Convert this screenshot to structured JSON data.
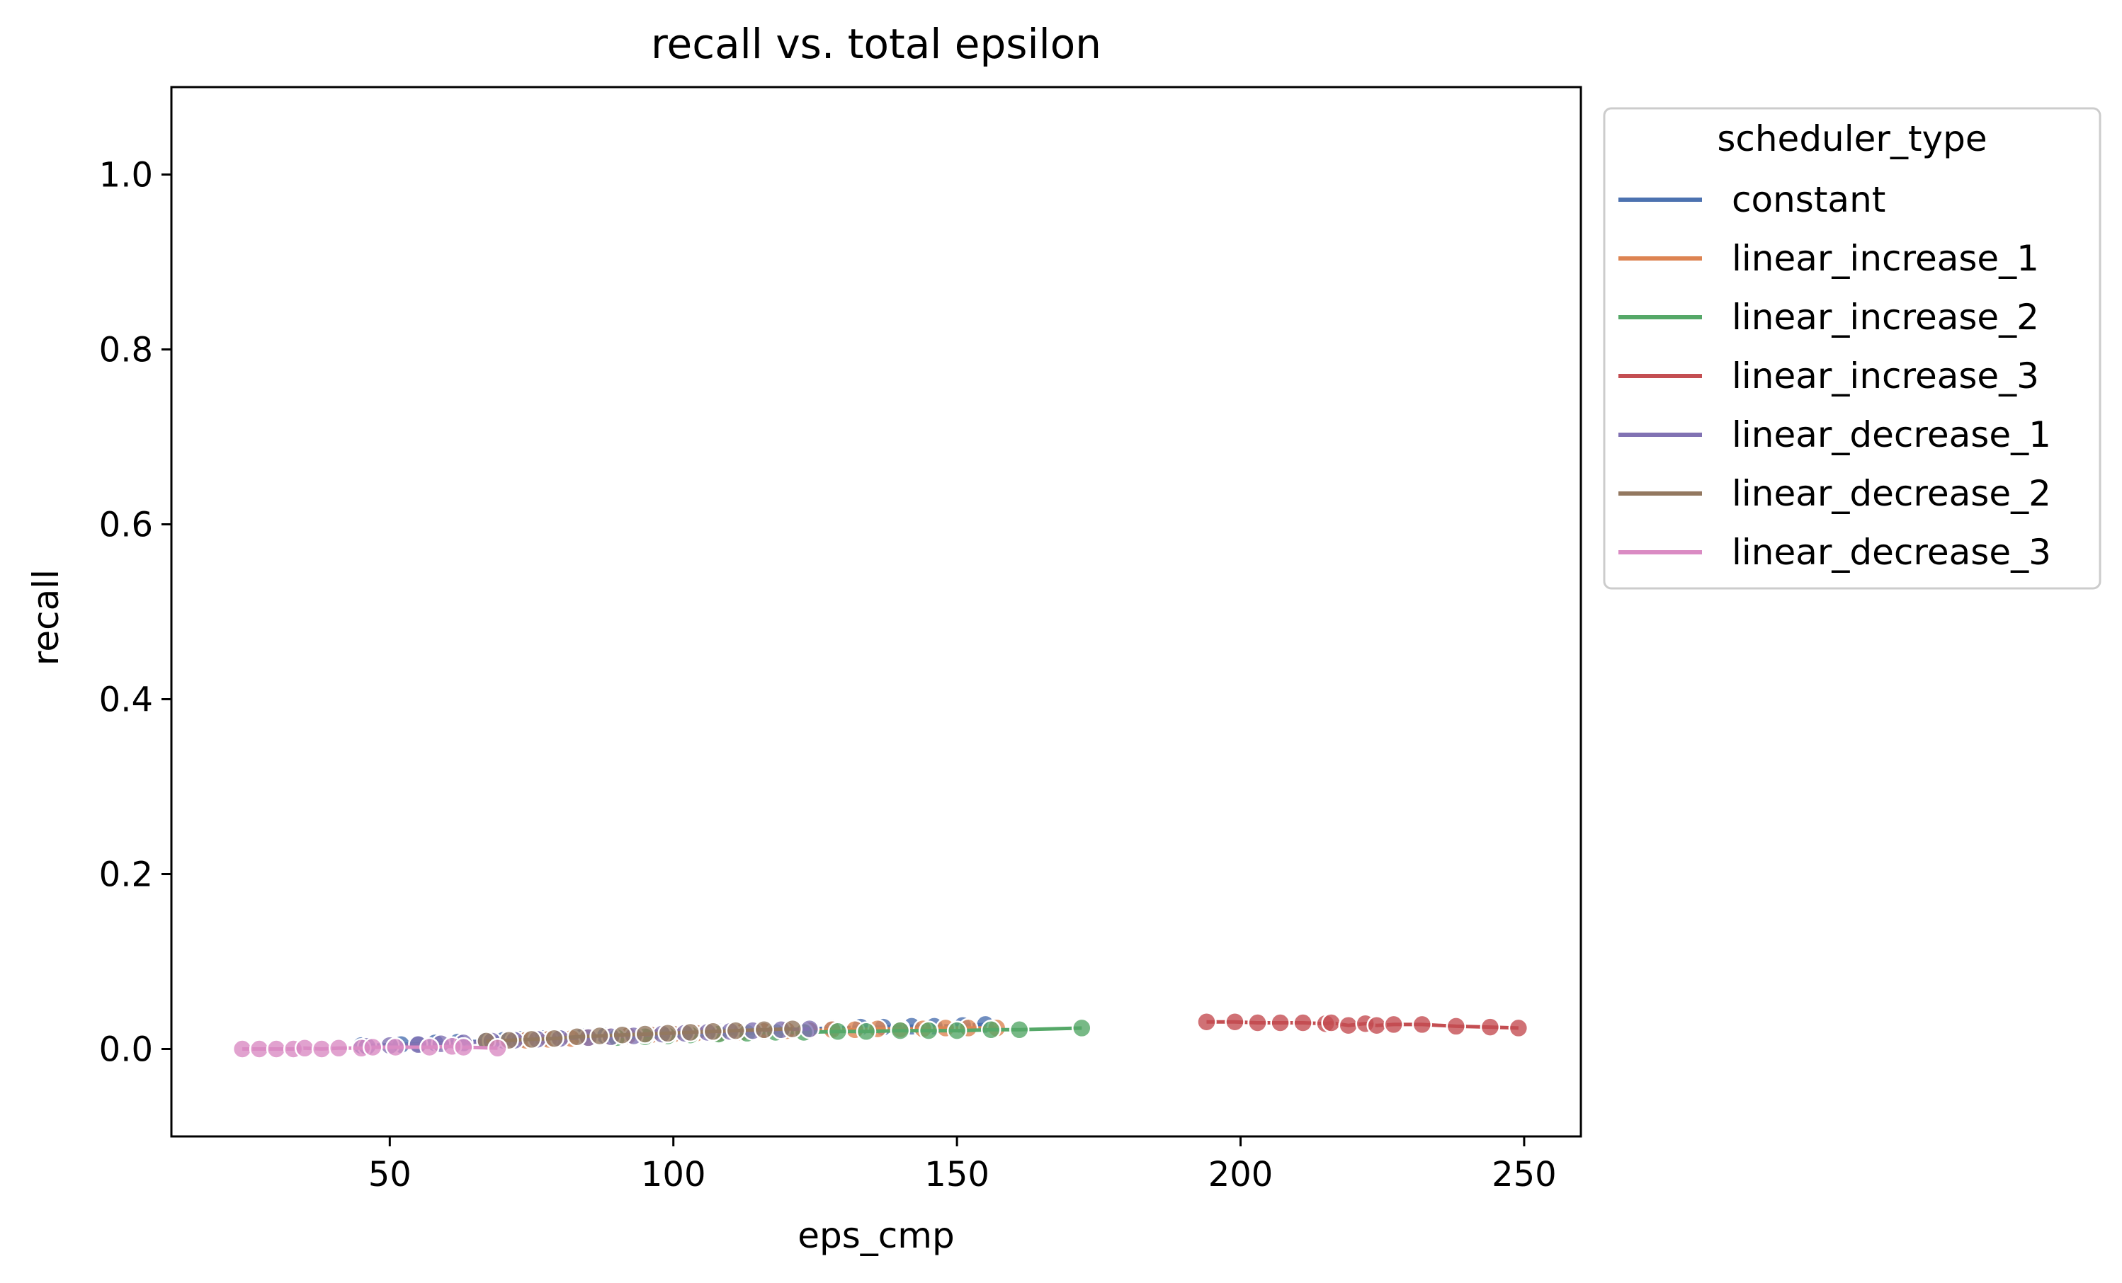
{
  "chart_data": {
    "type": "line",
    "title": "recall vs. total epsilon",
    "xlabel": "eps_cmp",
    "ylabel": "recall",
    "xlim": [
      11.5,
      260
    ],
    "ylim": [
      -0.1,
      1.1
    ],
    "xticks": [
      50,
      100,
      150,
      200,
      250
    ],
    "yticks": [
      0.0,
      0.2,
      0.4,
      0.6,
      0.8,
      1.0
    ],
    "xtick_labels": [
      "50",
      "100",
      "150",
      "200",
      "250"
    ],
    "ytick_labels": [
      "0.0",
      "0.2",
      "0.4",
      "0.6",
      "0.8",
      "1.0"
    ],
    "grid": false,
    "legend": {
      "title": "scheduler_type",
      "placement": "outside-right"
    },
    "series": [
      {
        "name": "constant",
        "color": "#4c72b0",
        "x": [
          45,
          52,
          55,
          58,
          62,
          67,
          70,
          73,
          77,
          80,
          84,
          88,
          92,
          96,
          100,
          104,
          108,
          112,
          116,
          120,
          124,
          128,
          133,
          137,
          142,
          146,
          151,
          155
        ],
        "y": [
          0.004,
          0.005,
          0.006,
          0.007,
          0.008,
          0.009,
          0.01,
          0.011,
          0.012,
          0.013,
          0.014,
          0.015,
          0.016,
          0.017,
          0.018,
          0.019,
          0.02,
          0.021,
          0.022,
          0.022,
          0.023,
          0.024,
          0.025,
          0.025,
          0.026,
          0.026,
          0.027,
          0.028
        ]
      },
      {
        "name": "linear_increase_1",
        "color": "#dd8452",
        "x": [
          74,
          78,
          82,
          85,
          89,
          92,
          96,
          100,
          104,
          108,
          112,
          116,
          120,
          124,
          128,
          132,
          136,
          140,
          144,
          148,
          152,
          157
        ],
        "y": [
          0.01,
          0.011,
          0.012,
          0.013,
          0.014,
          0.015,
          0.016,
          0.017,
          0.018,
          0.018,
          0.019,
          0.02,
          0.021,
          0.021,
          0.022,
          0.022,
          0.023,
          0.023,
          0.023,
          0.024,
          0.024,
          0.024
        ]
      },
      {
        "name": "linear_increase_2",
        "color": "#55a868",
        "x": [
          90,
          95,
          99,
          103,
          108,
          113,
          118,
          123,
          129,
          134,
          140,
          145,
          150,
          156,
          161,
          172
        ],
        "y": [
          0.013,
          0.014,
          0.015,
          0.016,
          0.017,
          0.018,
          0.019,
          0.019,
          0.02,
          0.02,
          0.021,
          0.021,
          0.021,
          0.022,
          0.022,
          0.024
        ]
      },
      {
        "name": "linear_increase_3",
        "color": "#c44e52",
        "x": [
          194,
          199,
          203,
          207,
          211,
          215,
          216,
          219,
          222,
          224,
          227,
          232,
          238,
          244,
          249
        ],
        "y": [
          0.031,
          0.031,
          0.03,
          0.03,
          0.03,
          0.029,
          0.03,
          0.027,
          0.029,
          0.027,
          0.028,
          0.028,
          0.026,
          0.025,
          0.024
        ]
      },
      {
        "name": "linear_decrease_1",
        "color": "#8172b3",
        "x": [
          46,
          50,
          55,
          59,
          63,
          68,
          72,
          76,
          80,
          85,
          89,
          93,
          98,
          102,
          106,
          110,
          114,
          119,
          124
        ],
        "y": [
          0.003,
          0.004,
          0.005,
          0.006,
          0.007,
          0.009,
          0.01,
          0.011,
          0.012,
          0.013,
          0.014,
          0.015,
          0.017,
          0.018,
          0.019,
          0.02,
          0.021,
          0.022,
          0.023
        ]
      },
      {
        "name": "linear_decrease_2",
        "color": "#937860",
        "x": [
          67,
          71,
          75,
          79,
          83,
          87,
          91,
          95,
          99,
          103,
          107,
          111,
          116,
          121
        ],
        "y": [
          0.009,
          0.01,
          0.011,
          0.012,
          0.014,
          0.015,
          0.016,
          0.017,
          0.018,
          0.019,
          0.02,
          0.021,
          0.022,
          0.023
        ]
      },
      {
        "name": "linear_decrease_3",
        "color": "#da8bc3",
        "x": [
          24,
          27,
          30,
          33,
          35,
          38,
          41,
          45,
          47,
          51,
          57,
          61,
          63,
          69
        ],
        "y": [
          0.0,
          0.0,
          0.0,
          0.0,
          0.001,
          0.0,
          0.001,
          0.001,
          0.002,
          0.002,
          0.002,
          0.003,
          0.002,
          0.001
        ]
      }
    ]
  }
}
